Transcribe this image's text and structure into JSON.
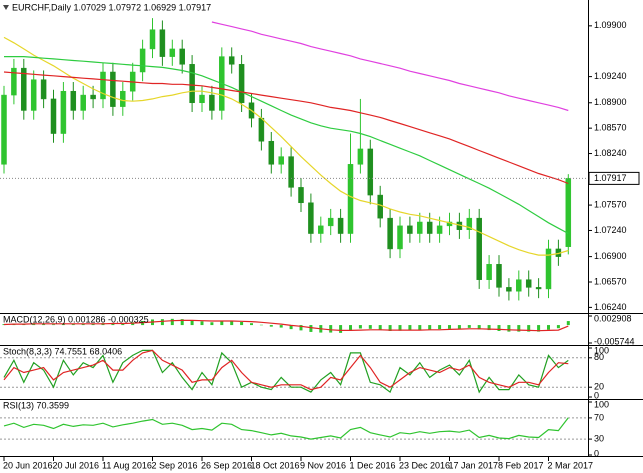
{
  "chart_data": [
    {
      "type": "candlestick",
      "title": "EURCHF,Daily  1.07029 1.07972 1.06929 1.07917",
      "categories": [
        "20 Jun 2016",
        null,
        null,
        null,
        null,
        "20 Jul 2016",
        null,
        null,
        null,
        null,
        "11 Aug 2016",
        null,
        null,
        null,
        null,
        "2 Sep 2016",
        null,
        null,
        null,
        null,
        "26 Sep 2016",
        null,
        null,
        null,
        null,
        "18 Oct 2016",
        null,
        null,
        null,
        null,
        "9 Nov 2016",
        null,
        null,
        null,
        null,
        "1 Dec 2016",
        null,
        null,
        null,
        null,
        "23 Dec 2016",
        null,
        null,
        null,
        null,
        "17 Jan 2017",
        null,
        null,
        null,
        null,
        "8 Feb 2017",
        null,
        null,
        null,
        null,
        "2 Mar 2017",
        null,
        null
      ],
      "up_color": "#2fc42f",
      "down_color": "#1f8f1f",
      "ohlc": [
        [
          1.081,
          1.0912,
          1.0798,
          1.09
        ],
        [
          1.09,
          1.0947,
          1.0888,
          1.0935
        ],
        [
          1.0935,
          1.0947,
          1.0868,
          1.088
        ],
        [
          1.088,
          1.0932,
          1.0868,
          1.092
        ],
        [
          1.092,
          1.0932,
          1.0883,
          1.0895
        ],
        [
          1.0895,
          1.0907,
          1.0838,
          1.085
        ],
        [
          1.085,
          1.0917,
          1.0838,
          1.0905
        ],
        [
          1.0905,
          1.0917,
          1.0868,
          1.088
        ],
        [
          1.088,
          1.0912,
          1.0868,
          1.09
        ],
        [
          1.09,
          1.0912,
          1.0883,
          1.0895
        ],
        [
          1.0895,
          1.0942,
          1.0883,
          1.093
        ],
        [
          1.093,
          1.0942,
          1.0873,
          1.0885
        ],
        [
          1.0885,
          1.0917,
          1.0873,
          1.0905
        ],
        [
          1.0905,
          1.0942,
          1.0893,
          1.093
        ],
        [
          1.093,
          1.0972,
          1.0918,
          1.096
        ],
        [
          1.096,
          1.1,
          1.0948,
          1.0985
        ],
        [
          1.0985,
          1.0997,
          1.0938,
          1.095
        ],
        [
          1.095,
          1.0972,
          1.0938,
          1.096
        ],
        [
          1.096,
          1.0972,
          1.0928,
          1.094
        ],
        [
          1.094,
          1.0952,
          1.0878,
          1.089
        ],
        [
          1.089,
          1.0912,
          1.0878,
          1.09
        ],
        [
          1.09,
          1.0912,
          1.0868,
          1.088
        ],
        [
          1.088,
          1.0962,
          1.0868,
          1.095
        ],
        [
          1.095,
          1.0962,
          1.0928,
          1.094
        ],
        [
          1.094,
          1.0952,
          1.0878,
          1.089
        ],
        [
          1.089,
          1.0902,
          1.0858,
          1.087
        ],
        [
          1.087,
          1.0882,
          1.0828,
          1.084
        ],
        [
          1.084,
          1.0852,
          1.0798,
          1.081
        ],
        [
          1.081,
          1.0832,
          1.0798,
          1.082
        ],
        [
          1.082,
          1.0832,
          1.0768,
          1.078
        ],
        [
          1.078,
          1.0792,
          1.0748,
          1.076
        ],
        [
          1.076,
          1.0772,
          1.0708,
          1.072
        ],
        [
          1.072,
          1.0742,
          1.0708,
          1.073
        ],
        [
          1.073,
          1.0752,
          1.0718,
          1.074
        ],
        [
          1.074,
          1.0752,
          1.0708,
          1.072
        ],
        [
          1.072,
          1.085,
          1.0708,
          1.081
        ],
        [
          1.081,
          1.0895,
          1.0798,
          1.083
        ],
        [
          1.083,
          1.0842,
          1.0758,
          1.077
        ],
        [
          1.077,
          1.0782,
          1.0728,
          1.074
        ],
        [
          1.074,
          1.0752,
          1.0688,
          1.07
        ],
        [
          1.07,
          1.0742,
          1.0688,
          1.073
        ],
        [
          1.073,
          1.0742,
          1.0708,
          1.072
        ],
        [
          1.072,
          1.0747,
          1.0708,
          1.0735
        ],
        [
          1.0735,
          1.0747,
          1.0708,
          1.072
        ],
        [
          1.072,
          1.0742,
          1.0708,
          1.073
        ],
        [
          1.073,
          1.0747,
          1.0718,
          1.0735
        ],
        [
          1.0735,
          1.0747,
          1.0713,
          1.0725
        ],
        [
          1.0725,
          1.0752,
          1.0713,
          1.074
        ],
        [
          1.074,
          1.0752,
          1.0648,
          1.066
        ],
        [
          1.066,
          1.0692,
          1.0648,
          1.068
        ],
        [
          1.068,
          1.0692,
          1.0638,
          1.065
        ],
        [
          1.065,
          1.0662,
          1.0633,
          1.0645
        ],
        [
          1.0645,
          1.0672,
          1.0633,
          1.066
        ],
        [
          1.066,
          1.0672,
          1.0638,
          1.065
        ],
        [
          1.065,
          1.0662,
          1.0636,
          1.0648
        ],
        [
          1.0648,
          1.0712,
          1.0636,
          1.07
        ],
        [
          1.07,
          1.0712,
          1.0678,
          1.069
        ],
        [
          1.07029,
          1.07972,
          1.06929,
          1.07917
        ]
      ],
      "series": [
        {
          "color": "#e6d62a",
          "values": [
            1.0975,
            1.0968,
            1.096,
            1.0952,
            1.0945,
            1.0938,
            1.093,
            1.0922,
            1.0915,
            1.0908,
            1.0902,
            1.0897,
            1.0893,
            1.0892,
            1.0893,
            1.0895,
            1.0898,
            1.09,
            1.0903,
            1.0905,
            1.0905,
            1.0903,
            1.09,
            1.0895,
            1.0888,
            1.088,
            1.087,
            1.0858,
            1.0846,
            1.0833,
            1.082,
            1.0808,
            1.0796,
            1.0785,
            1.0775,
            1.0768,
            1.0763,
            1.076,
            1.0757,
            1.0752,
            1.0748,
            1.0745,
            1.0743,
            1.074,
            1.0737,
            1.0734,
            1.0731,
            1.0728,
            1.0722,
            1.0716,
            1.071,
            1.0704,
            1.0699,
            1.0695,
            1.0692,
            1.0692,
            1.0694,
            1.0698
          ]
        },
        {
          "color": "#2ecc40",
          "values": [
            1.095,
            1.095,
            1.095,
            1.0949,
            1.0948,
            1.0947,
            1.0946,
            1.0945,
            1.0944,
            1.0943,
            1.0942,
            1.0941,
            1.094,
            1.0939,
            1.0938,
            1.0937,
            1.0936,
            1.0934,
            1.0932,
            1.0929,
            1.0925,
            1.092,
            1.0915,
            1.091,
            1.0904,
            1.0898,
            1.0892,
            1.0886,
            1.088,
            1.0874,
            1.0869,
            1.0864,
            1.086,
            1.0857,
            1.0855,
            1.0853,
            1.085,
            1.0846,
            1.0841,
            1.0836,
            1.0831,
            1.0826,
            1.0821,
            1.0815,
            1.0809,
            1.0803,
            1.0797,
            1.0791,
            1.0785,
            1.0779,
            1.0772,
            1.0765,
            1.0758,
            1.075,
            1.0742,
            1.0734,
            1.0727,
            1.072
          ]
        },
        {
          "color": "#e02424",
          "values": [
            1.093,
            1.0929,
            1.0928,
            1.0927,
            1.0926,
            1.0925,
            1.0924,
            1.0923,
            1.0922,
            1.0921,
            1.092,
            1.0919,
            1.0918,
            1.0917,
            1.0916,
            1.0915,
            1.0915,
            1.0914,
            1.0914,
            1.0913,
            1.0912,
            1.091,
            1.0908,
            1.0906,
            1.0904,
            1.0902,
            1.09,
            1.0898,
            1.0896,
            1.0894,
            1.0892,
            1.089,
            1.0887,
            1.0884,
            1.0882,
            1.088,
            1.0877,
            1.0874,
            1.0871,
            1.0867,
            1.0863,
            1.0859,
            1.0855,
            1.0851,
            1.0847,
            1.0843,
            1.0838,
            1.0833,
            1.0828,
            1.0823,
            1.0818,
            1.0813,
            1.0808,
            1.0803,
            1.0798,
            1.0794,
            1.079,
            1.0785
          ]
        },
        {
          "color": "#e040e0",
          "values": [
            null,
            null,
            null,
            null,
            null,
            null,
            null,
            null,
            null,
            null,
            null,
            null,
            null,
            null,
            null,
            null,
            null,
            null,
            null,
            null,
            null,
            1.0995,
            1.0992,
            1.0989,
            1.0986,
            1.0983,
            1.0979,
            1.0976,
            1.0973,
            1.097,
            1.0967,
            1.0963,
            1.096,
            1.0957,
            1.0954,
            1.0951,
            1.0947,
            1.0944,
            1.0941,
            1.0938,
            1.0935,
            1.0931,
            1.0928,
            1.0925,
            1.0922,
            1.0919,
            1.0915,
            1.0912,
            1.0909,
            1.0906,
            1.0903,
            1.0899,
            1.0896,
            1.0893,
            1.089,
            1.0887,
            1.0884,
            1.088
          ]
        }
      ],
      "ylim": [
        1.0618,
        1.1021
      ],
      "yticks": [
        {
          "value": 1.0624,
          "label": "1.06240"
        },
        {
          "value": 1.0657,
          "label": "1.06570"
        },
        {
          "value": 1.069,
          "label": "1.06900"
        },
        {
          "value": 1.0724,
          "label": "1.07240"
        },
        {
          "value": 1.0757,
          "label": "1.07570"
        },
        {
          "value": 1.0824,
          "label": "1.08240"
        },
        {
          "value": 1.0857,
          "label": "1.08570"
        },
        {
          "value": 1.089,
          "label": "1.08900"
        },
        {
          "value": 1.0924,
          "label": "1.09240"
        },
        {
          "value": 1.099,
          "label": "1.09900"
        }
      ],
      "current": {
        "value": 1.07917,
        "label": "1.07917"
      }
    },
    {
      "type": "macd",
      "title": "MACD(12,26,9) 0.001286 -0.000325",
      "histogram": {
        "color": "#2fc42f",
        "values": [
          0.0003,
          0.0005,
          0.0004,
          0.0006,
          0.0005,
          0.0002,
          0.0004,
          0.0003,
          0.0004,
          0.0004,
          0.0006,
          0.0005,
          0.0006,
          0.0009,
          0.0013,
          0.0018,
          0.0019,
          0.002,
          0.0019,
          0.0015,
          0.0012,
          0.0009,
          0.0012,
          0.0013,
          0.001,
          0.0006,
          0.0001,
          -0.0005,
          -0.0008,
          -0.0013,
          -0.0017,
          -0.0022,
          -0.0024,
          -0.0024,
          -0.0025,
          -0.0018,
          -0.0011,
          -0.0012,
          -0.0015,
          -0.0019,
          -0.0018,
          -0.0017,
          -0.0015,
          -0.0014,
          -0.0013,
          -0.0012,
          -0.0011,
          -0.0009,
          -0.0014,
          -0.0016,
          -0.0019,
          -0.0021,
          -0.0021,
          -0.0021,
          -0.0021,
          -0.0015,
          -0.001,
          0.001286
        ]
      },
      "series": [
        {
          "color": "#e02424",
          "values": [
            0.0002,
            0.0003,
            0.0003,
            0.0004,
            0.0004,
            0.0004,
            0.0004,
            0.0004,
            0.0004,
            0.0004,
            0.0004,
            0.0005,
            0.0005,
            0.0006,
            0.0008,
            0.001,
            0.0012,
            0.0014,
            0.0015,
            0.0015,
            0.0014,
            0.0013,
            0.0013,
            0.0013,
            0.0012,
            0.0011,
            0.0009,
            0.0006,
            0.0003,
            -0.0001,
            -0.0004,
            -0.0008,
            -0.0012,
            -0.0015,
            -0.0017,
            -0.0017,
            -0.0016,
            -0.0015,
            -0.0015,
            -0.0016,
            -0.0016,
            -0.0016,
            -0.0016,
            -0.0015,
            -0.0015,
            -0.0014,
            -0.0013,
            -0.0012,
            -0.0012,
            -0.0013,
            -0.0014,
            -0.0015,
            -0.0016,
            -0.0017,
            -0.0018,
            -0.0017,
            -0.0016,
            -0.000325
          ]
        }
      ],
      "ylim": [
        -0.005744,
        0.002908
      ],
      "yticks": [
        -0.005744,
        0.002908
      ]
    },
    {
      "type": "line",
      "title": "Stoch(8,3,3) 74.7551 68.0406",
      "series": [
        {
          "color": "#22a022",
          "values": [
            40,
            75,
            30,
            70,
            55,
            20,
            75,
            45,
            70,
            60,
            85,
            30,
            70,
            85,
            95,
            95,
            50,
            70,
            40,
            15,
            50,
            25,
            90,
            70,
            20,
            30,
            20,
            15,
            40,
            20,
            20,
            10,
            35,
            50,
            25,
            90,
            90,
            30,
            25,
            10,
            60,
            45,
            70,
            40,
            55,
            65,
            45,
            75,
            10,
            40,
            15,
            15,
            45,
            25,
            20,
            85,
            60,
            74.7551
          ]
        },
        {
          "color": "#e02424",
          "values": [
            35,
            60,
            50,
            55,
            60,
            35,
            50,
            55,
            60,
            65,
            75,
            55,
            55,
            75,
            90,
            95,
            75,
            65,
            55,
            30,
            35,
            35,
            60,
            75,
            50,
            30,
            25,
            20,
            25,
            25,
            25,
            15,
            20,
            40,
            35,
            60,
            85,
            60,
            30,
            20,
            35,
            50,
            60,
            55,
            50,
            60,
            55,
            65,
            40,
            30,
            25,
            20,
            30,
            30,
            25,
            50,
            70,
            68.0406
          ]
        }
      ],
      "ylim": [
        0,
        100
      ],
      "yticks": [
        0,
        20,
        80,
        100
      ],
      "levels": [
        20,
        80
      ]
    },
    {
      "type": "line",
      "title": "RSI(13) 70.3599",
      "series": [
        {
          "color": "#2fc42f",
          "values": [
            55,
            60,
            52,
            58,
            56,
            50,
            58,
            54,
            57,
            56,
            60,
            53,
            57,
            60,
            64,
            67,
            58,
            60,
            56,
            48,
            50,
            47,
            60,
            58,
            48,
            46,
            42,
            38,
            41,
            36,
            34,
            30,
            33,
            36,
            32,
            48,
            52,
            42,
            38,
            34,
            42,
            40,
            44,
            41,
            44,
            45,
            43,
            47,
            33,
            37,
            32,
            31,
            37,
            34,
            33,
            48,
            46,
            70.3599
          ]
        }
      ],
      "ylim": [
        0,
        100
      ],
      "yticks": [
        0,
        30,
        70,
        100
      ],
      "levels": [
        30,
        70
      ]
    }
  ]
}
